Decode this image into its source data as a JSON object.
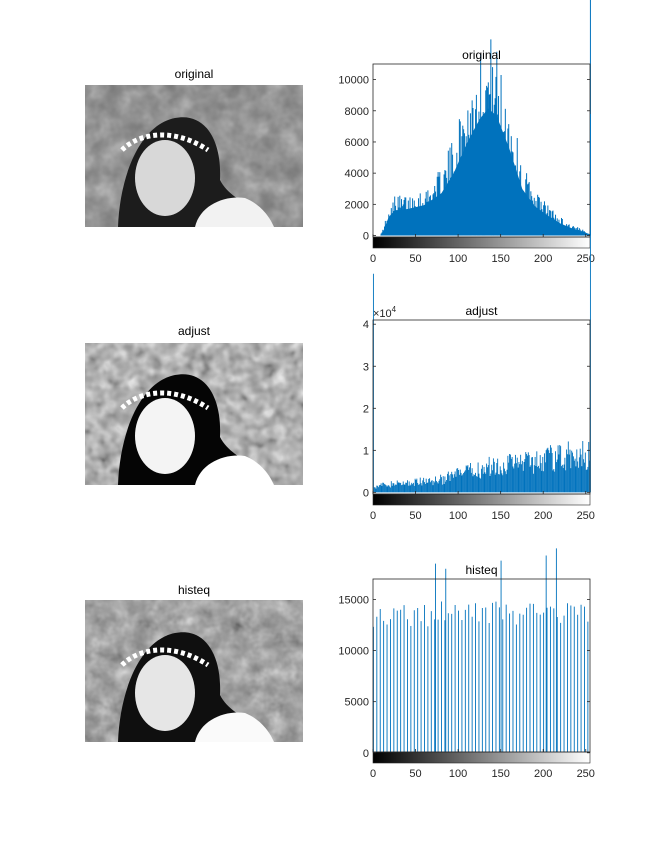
{
  "figure": {
    "panels": [
      {
        "image_title": "original",
        "kind": "original"
      },
      {
        "image_title": "adjust",
        "kind": "adjust"
      },
      {
        "image_title": "histeq",
        "kind": "histeq"
      }
    ]
  },
  "chart_data": [
    {
      "type": "bar",
      "title": "original",
      "xlabel": "",
      "ylabel": "",
      "x_range": [
        0,
        255
      ],
      "xlim": [
        0,
        255
      ],
      "ylim": [
        -800,
        11000
      ],
      "x_ticks": [
        0,
        50,
        100,
        150,
        200,
        250
      ],
      "y_ticks": [
        0,
        2000,
        4000,
        6000,
        8000,
        10000
      ],
      "y_tick_labels": [
        "0",
        "2000",
        "4000",
        "6000",
        "8000",
        "10000"
      ],
      "exponent_label": "",
      "bar_color": "#0072BD",
      "grid": false,
      "colorbar": "gray",
      "profile": {
        "shape": "unimodal",
        "points": [
          [
            0,
            0
          ],
          [
            8,
            0
          ],
          [
            12,
            400
          ],
          [
            18,
            1400
          ],
          [
            25,
            1900
          ],
          [
            40,
            2000
          ],
          [
            60,
            2300
          ],
          [
            80,
            3200
          ],
          [
            95,
            4800
          ],
          [
            110,
            7000
          ],
          [
            125,
            8800
          ],
          [
            135,
            9600
          ],
          [
            145,
            9000
          ],
          [
            160,
            6500
          ],
          [
            175,
            3500
          ],
          [
            190,
            2200
          ],
          [
            205,
            1500
          ],
          [
            220,
            900
          ],
          [
            235,
            500
          ],
          [
            245,
            300
          ],
          [
            250,
            200
          ],
          [
            254,
            100
          ],
          [
            255,
            0
          ]
        ],
        "peak_value": 10800,
        "peak_at": 140,
        "spike_at_max": 16000
      }
    },
    {
      "type": "bar",
      "title": "adjust",
      "xlabel": "",
      "ylabel": "",
      "x_range": [
        0,
        255
      ],
      "xlim": [
        0,
        255
      ],
      "ylim": [
        -3000,
        41000
      ],
      "x_ticks": [
        0,
        50,
        100,
        150,
        200,
        250
      ],
      "y_ticks": [
        0,
        10000,
        20000,
        30000,
        40000
      ],
      "y_tick_labels": [
        "0",
        "1",
        "2",
        "3",
        "4"
      ],
      "exponent_label": "×10",
      "exponent_power": "4",
      "bar_color": "#0072BD",
      "grid": false,
      "colorbar": "gray",
      "profile": {
        "shape": "rising",
        "points": [
          [
            0,
            1500
          ],
          [
            20,
            2000
          ],
          [
            50,
            2500
          ],
          [
            80,
            3200
          ],
          [
            100,
            4500
          ],
          [
            120,
            5500
          ],
          [
            140,
            6500
          ],
          [
            160,
            7200
          ],
          [
            180,
            7800
          ],
          [
            200,
            8300
          ],
          [
            220,
            8800
          ],
          [
            240,
            9200
          ],
          [
            255,
            9400
          ]
        ],
        "peak_value": 11000,
        "peak_at": 220,
        "spike_at_min": 52000,
        "spike_at_max": 90000
      }
    },
    {
      "type": "bar",
      "title": "histeq",
      "xlabel": "",
      "ylabel": "",
      "x_range": [
        0,
        255
      ],
      "xlim": [
        0,
        255
      ],
      "ylim": [
        -1000,
        17000
      ],
      "x_ticks": [
        0,
        50,
        100,
        150,
        200,
        250
      ],
      "y_ticks": [
        0,
        5000,
        10000,
        15000
      ],
      "y_tick_labels": [
        "0",
        "5000",
        "10000",
        "15000"
      ],
      "exponent_label": "",
      "bar_color": "#0072BD",
      "grid": false,
      "colorbar": "gray",
      "profile": {
        "shape": "equalized",
        "bar_spacing": 4,
        "typical_value": 14000,
        "tall_bars": [
          [
            73,
            18500
          ],
          [
            85,
            18000
          ],
          [
            150,
            18800
          ],
          [
            203,
            19300
          ],
          [
            215,
            20000
          ]
        ]
      }
    }
  ]
}
